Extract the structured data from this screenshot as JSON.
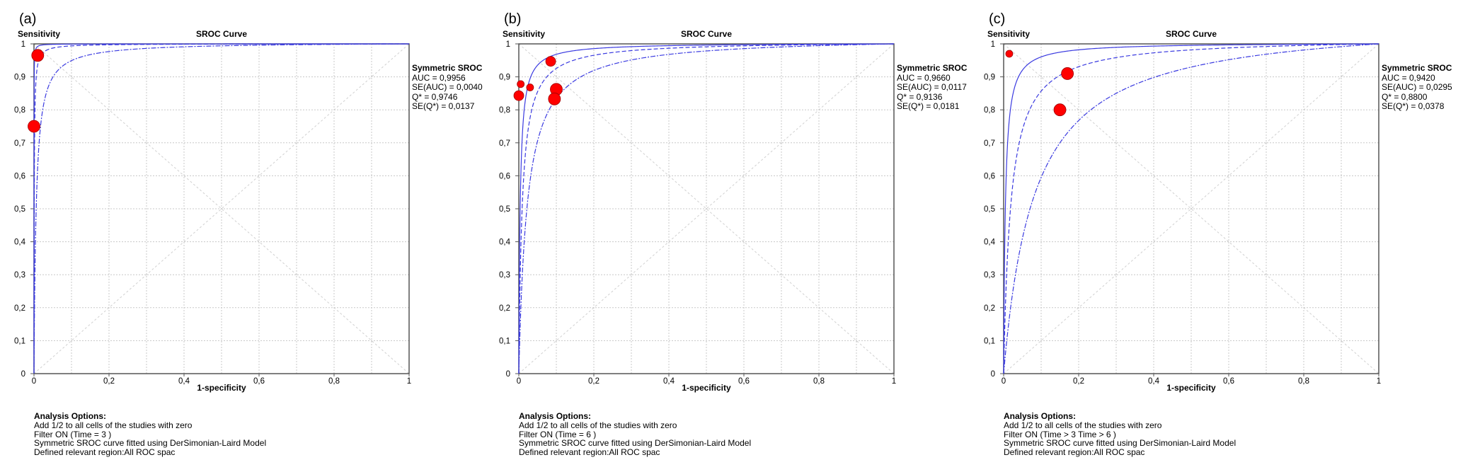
{
  "chart_data": [
    {
      "type": "scatter",
      "panel_label": "(a)",
      "title": "SROC Curve",
      "xlabel": "1-specificity",
      "ylabel": "Sensitivity",
      "xlim": [
        0,
        1
      ],
      "ylim": [
        0,
        1
      ],
      "xticks": [
        "0",
        "0,2",
        "0,4",
        "0,6",
        "0,8",
        "1"
      ],
      "yticks": [
        "0",
        "0,1",
        "0,2",
        "0,3",
        "0,4",
        "0,5",
        "0,6",
        "0,7",
        "0,8",
        "0,9",
        "1"
      ],
      "grid": true,
      "legend": {
        "title": "Symmetric SROC",
        "lines": [
          "AUC = 0,9956",
          "SE(AUC) = 0,0040",
          "Q* = 0,9746",
          "SE(Q*) = 0,0137"
        ]
      },
      "q_star": 0.9746,
      "se_q_star": 0.0137,
      "points": [
        {
          "x": 0.01,
          "y": 0.965,
          "size": "large"
        },
        {
          "x": 0.0,
          "y": 0.75,
          "size": "large"
        }
      ],
      "analysis_options": {
        "heading": "Analysis Options:",
        "lines": [
          "Add 1/2 to all cells of the studies with zero",
          "Filter ON (Time = 3 )",
          "Symmetric SROC curve fitted using DerSimonian-Laird Model",
          "Defined relevant region:All ROC spac"
        ]
      }
    },
    {
      "type": "scatter",
      "panel_label": "(b)",
      "title": "SROC Curve",
      "xlabel": "1-specificity",
      "ylabel": "Sensitivity",
      "xlim": [
        0,
        1
      ],
      "ylim": [
        0,
        1
      ],
      "xticks": [
        "0",
        "0,2",
        "0,4",
        "0,6",
        "0,8",
        "1"
      ],
      "yticks": [
        "0",
        "0,1",
        "0,2",
        "0,3",
        "0,4",
        "0,5",
        "0,6",
        "0,7",
        "0,8",
        "0,9",
        "1"
      ],
      "grid": true,
      "legend": {
        "title": "Symmetric SROC",
        "lines": [
          "AUC = 0,9660",
          "SE(AUC) = 0,0117",
          "Q* = 0,9136",
          "SE(Q*) = 0,0181"
        ]
      },
      "q_star": 0.9136,
      "se_q_star": 0.0181,
      "points": [
        {
          "x": 0.085,
          "y": 0.947,
          "size": "medium"
        },
        {
          "x": 0.005,
          "y": 0.878,
          "size": "small"
        },
        {
          "x": 0.03,
          "y": 0.868,
          "size": "small"
        },
        {
          "x": 0.0,
          "y": 0.843,
          "size": "medium"
        },
        {
          "x": 0.1,
          "y": 0.862,
          "size": "large"
        },
        {
          "x": 0.095,
          "y": 0.833,
          "size": "large"
        }
      ],
      "analysis_options": {
        "heading": "Analysis Options:",
        "lines": [
          "Add 1/2 to all cells of the studies with zero",
          "Filter ON (Time = 6 )",
          "Symmetric SROC curve fitted using DerSimonian-Laird Model",
          "Defined relevant region:All ROC spac"
        ]
      }
    },
    {
      "type": "scatter",
      "panel_label": "(c)",
      "title": "SROC Curve",
      "xlabel": "1-specificity",
      "ylabel": "Sensitivity",
      "xlim": [
        0,
        1
      ],
      "ylim": [
        0,
        1
      ],
      "xticks": [
        "0",
        "0,2",
        "0,4",
        "0,6",
        "0,8",
        "1"
      ],
      "yticks": [
        "0",
        "0,1",
        "0,2",
        "0,3",
        "0,4",
        "0,5",
        "0,6",
        "0,7",
        "0,8",
        "0,9",
        "1"
      ],
      "grid": true,
      "legend": {
        "title": "Symmetric SROC",
        "lines": [
          "AUC = 0,9420",
          "SE(AUC) = 0,0295",
          "Q* = 0,8800",
          "SE(Q*) = 0,0378"
        ]
      },
      "q_star": 0.88,
      "se_q_star": 0.0378,
      "points": [
        {
          "x": 0.015,
          "y": 0.97,
          "size": "small"
        },
        {
          "x": 0.17,
          "y": 0.91,
          "size": "large"
        },
        {
          "x": 0.15,
          "y": 0.8,
          "size": "large"
        }
      ],
      "analysis_options": {
        "heading": "Analysis Options:",
        "lines": [
          "Add 1/2 to all cells of the studies with zero",
          "Filter ON (Time > 3 Time > 6 )",
          "Symmetric SROC curve fitted using DerSimonian-Laird Model",
          "Defined relevant region:All ROC spac"
        ]
      }
    }
  ],
  "colors": {
    "curve": "#3a3ae0",
    "point": "#ff0000",
    "grid": "#c8c8c8",
    "axis": "#555555"
  }
}
